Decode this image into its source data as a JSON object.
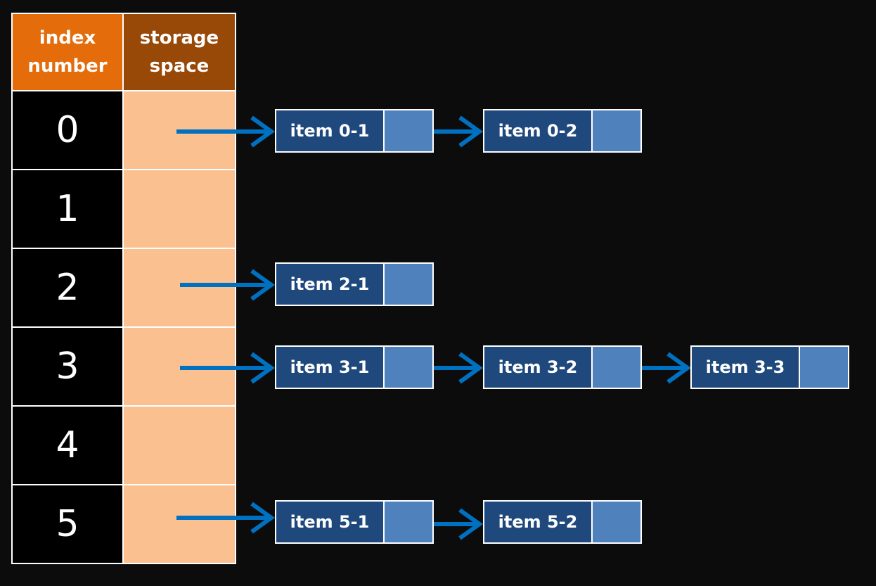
{
  "table": {
    "header_index": "index\nnumber",
    "header_storage": "storage\nspace",
    "rows": [
      "0",
      "1",
      "2",
      "3",
      "4",
      "5"
    ]
  },
  "chains": {
    "row0": [
      "item 0-1",
      "item 0-2"
    ],
    "row2": [
      "item 2-1"
    ],
    "row3": [
      "item 3-1",
      "item 3-2",
      "item 3-3"
    ],
    "row5": [
      "item 5-1",
      "item 5-2"
    ]
  },
  "colors": {
    "background": "#0c0c0c",
    "header_index": "#e46c0a",
    "header_storage": "#984807",
    "slot": "#fac090",
    "node_label": "#1f497d",
    "node_pointer": "#4f81bd",
    "arrow": "#0070c0"
  }
}
